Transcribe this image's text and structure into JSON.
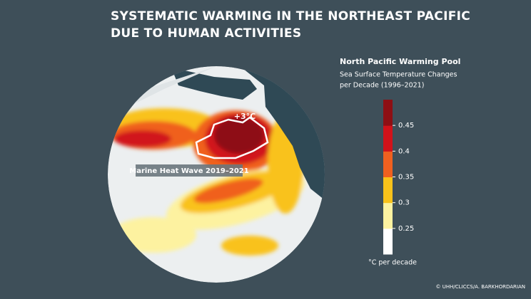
{
  "title_lines": [
    "SYSTEMATIC WARMING IN THE NORTHEAST PACIFIC",
    "DUE TO HUMAN ACTIVITIES"
  ],
  "legend": {
    "title": "North Pacific Warming Pool",
    "subtitle_lines": [
      "Sea Surface Temperature Changes",
      "per Decade (1996–2021)"
    ],
    "ticks": [
      0.25,
      0.3,
      0.35,
      0.4,
      0.45
    ],
    "colors": [
      "#ffffff",
      "#fdf2a0",
      "#f9c21a",
      "#f0601f",
      "#d1121a",
      "#8e0f14"
    ],
    "unit": "°C per decade"
  },
  "map": {
    "peak_label": "+3°C",
    "heatwave_label": "Marine Heat Wave 2019–2021"
  },
  "credit": "© UHH/CLICCS/A. BARKHORDARIAN"
}
